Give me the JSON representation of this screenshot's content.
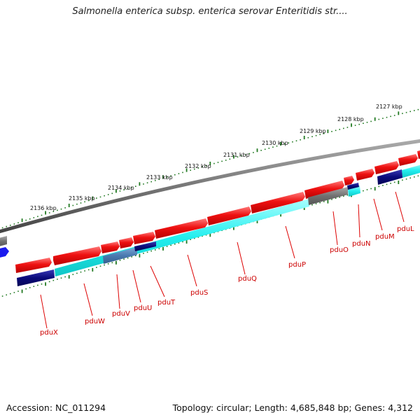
{
  "title": "Salmonella enterica subsp. enterica serovar Enteritidis str....",
  "accession": "Accession: NC_011294",
  "summary": "Topology: circular; Length: 4,685,848 bp; Genes: 4,312",
  "colors": {
    "backbone": "#777777",
    "forward_gene": "#ee1111",
    "reverse_gene": "#0a0a7a",
    "reverse_cds": "#22eeee",
    "pseudo_or_other": "#707070",
    "scale_ticks": "#227a22",
    "gene_labels": "#cc0000",
    "partial_feature": "#1a1aee"
  },
  "scale_labels": [
    "2127 kbp",
    "2128 kbp",
    "2129 kbp",
    "2130 kbp",
    "2131 kbp",
    "2132 kbp",
    "2133 kbp",
    "2134 kbp",
    "2135 kbp",
    "2136 kbp"
  ],
  "gene_labels": [
    "pduL",
    "pduM",
    "pduN",
    "pduO",
    "pduP",
    "pduQ",
    "pduS",
    "pduT",
    "pduU",
    "pduV",
    "pduW",
    "pduX"
  ]
}
